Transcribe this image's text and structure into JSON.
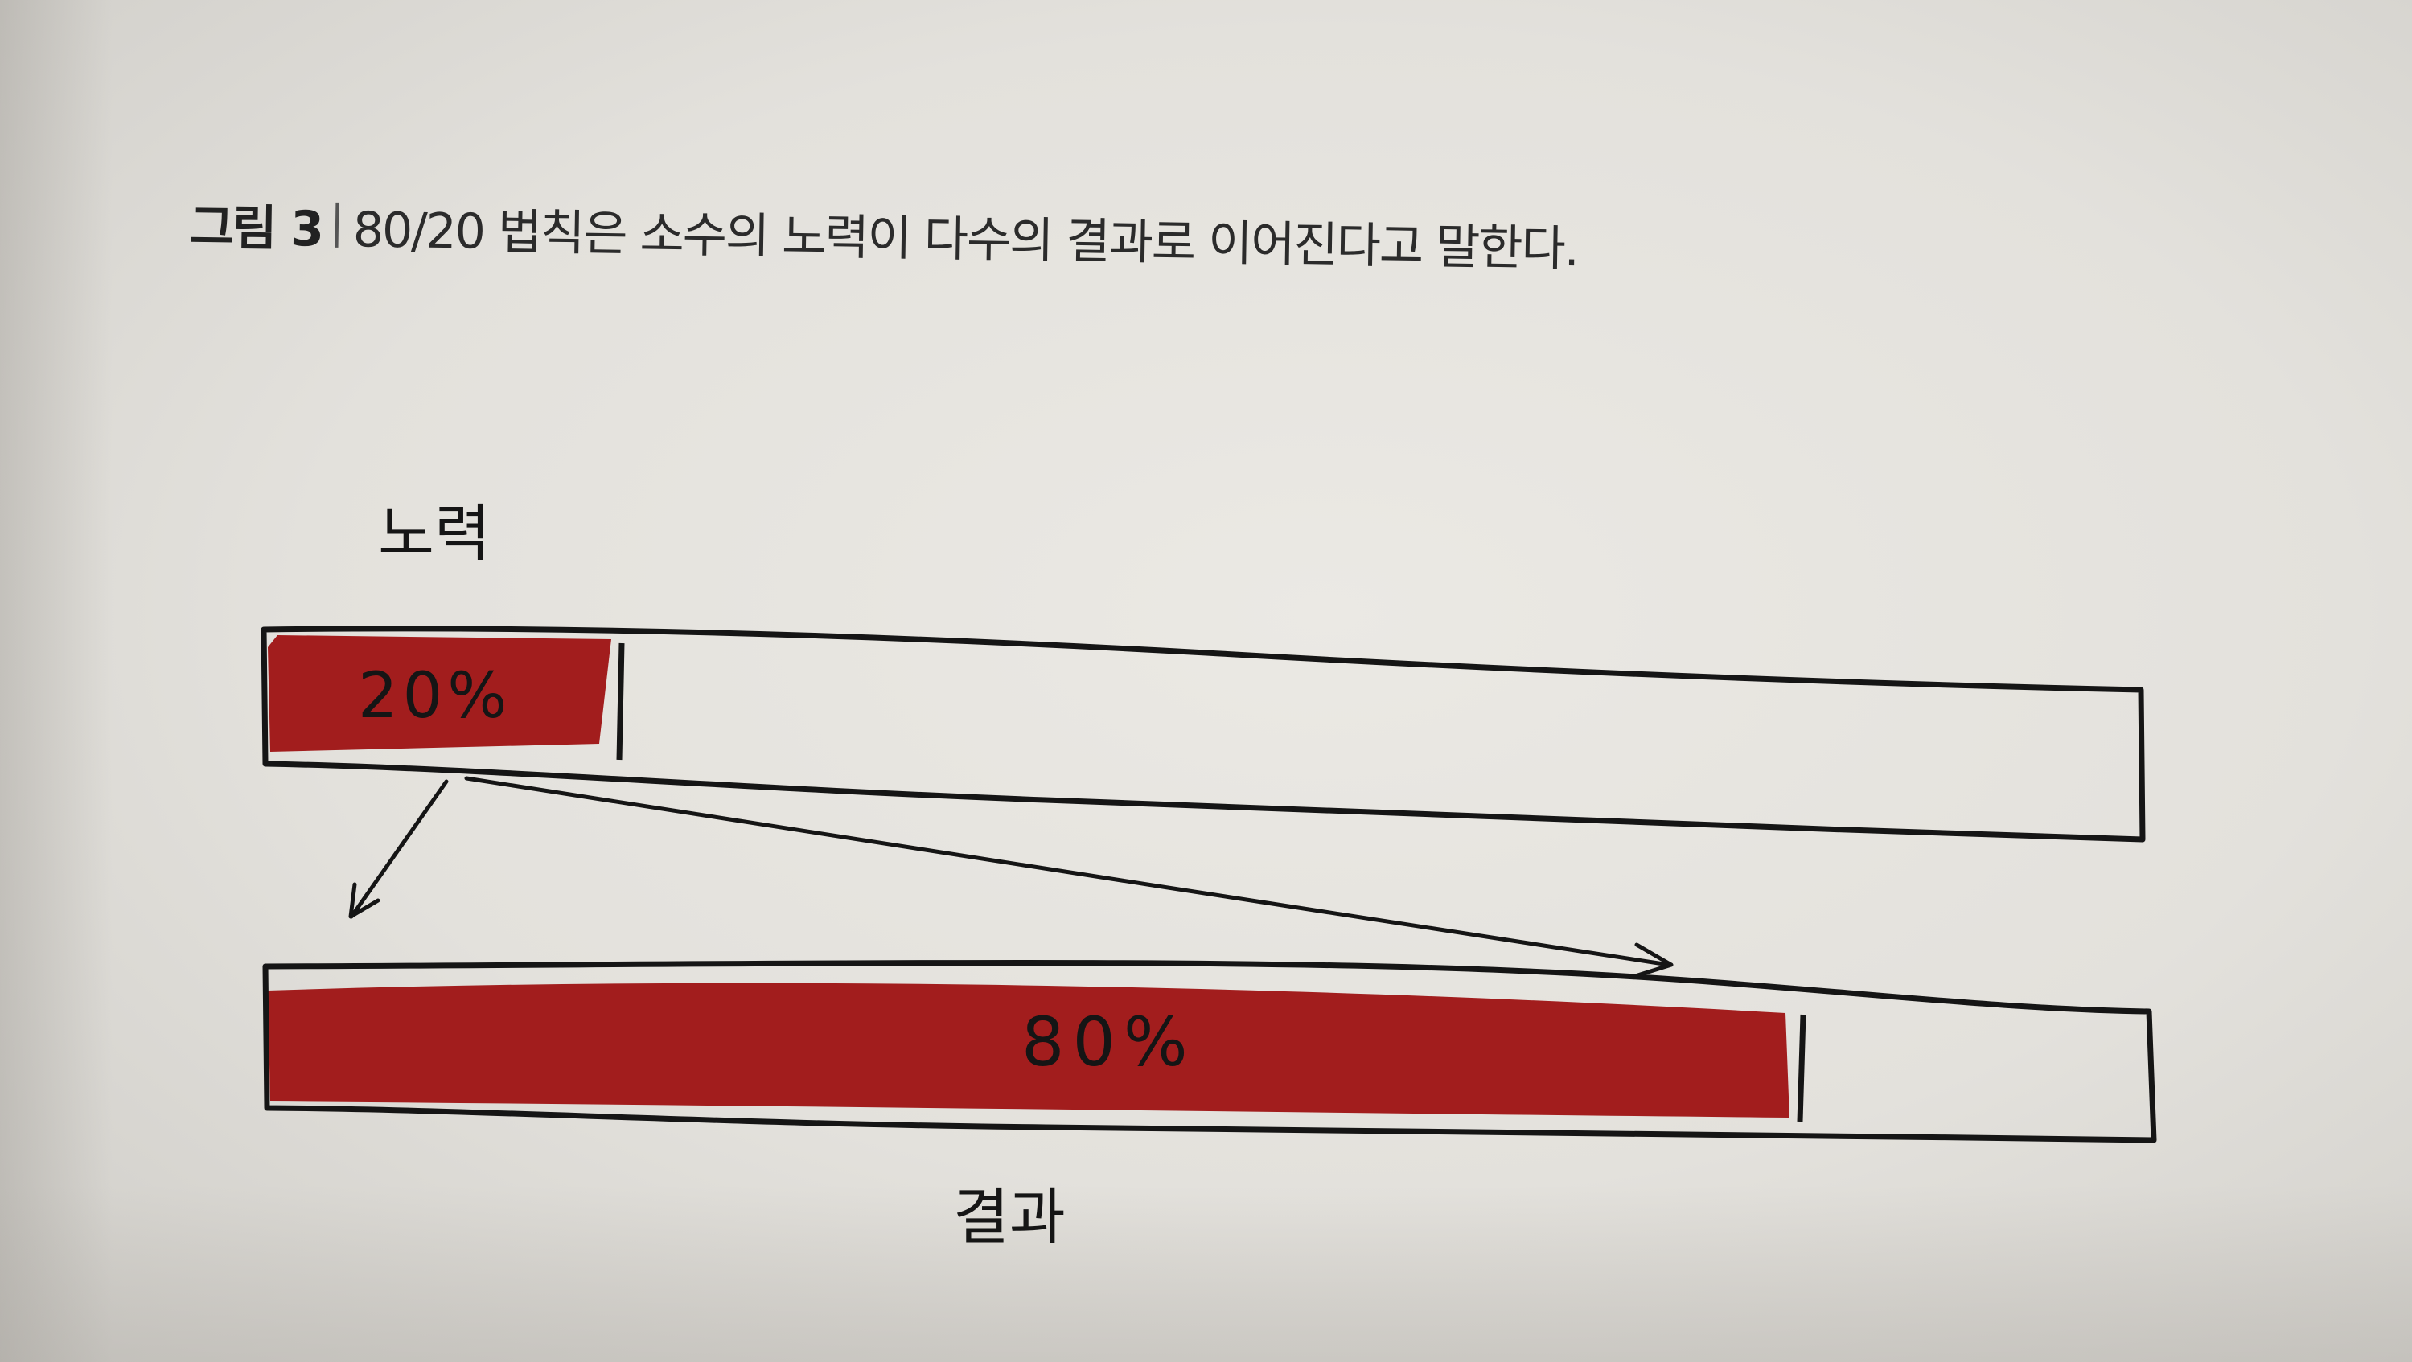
{
  "caption": {
    "figure_label": "그림 3",
    "text": "80/20 법칙은 소수의 노력이 다수의 결과로 이어진다고 말한다."
  },
  "diagram": {
    "effort": {
      "label": "노력",
      "percent_text": "20%",
      "fraction": 0.2
    },
    "result": {
      "label": "결과",
      "percent_text": "80%",
      "fraction": 0.8
    },
    "colors": {
      "fill": "#a21d1d",
      "ink": "#151515",
      "paper": "#e6e4df"
    }
  }
}
